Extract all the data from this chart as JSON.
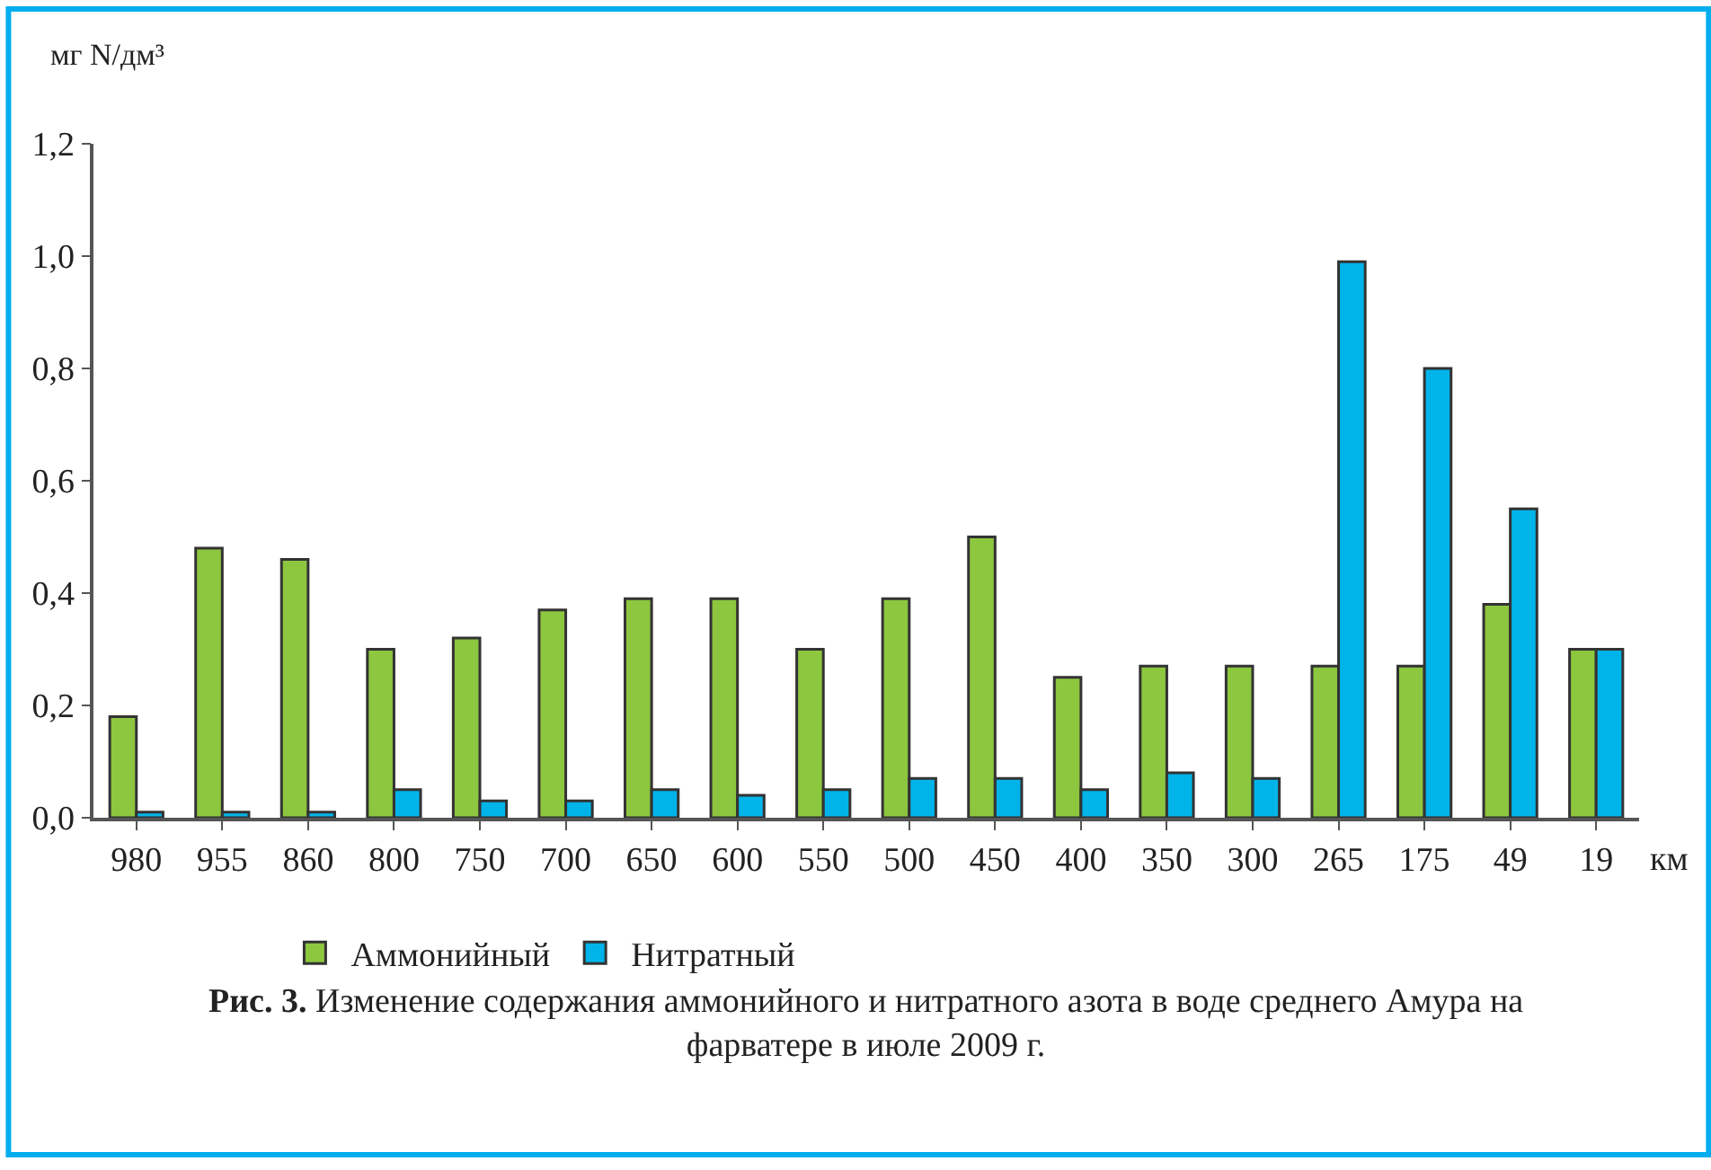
{
  "chart_data": {
    "type": "bar",
    "title": "Рис. 3. Изменение содержания аммонийного и нитратного азота в воде среднего Амура на фарватере в июле 2009 г.",
    "xlabel": "км",
    "ylabel": "мг N/дм³",
    "categories": [
      "980",
      "955",
      "860",
      "800",
      "750",
      "700",
      "650",
      "600",
      "550",
      "500",
      "450",
      "400",
      "350",
      "300",
      "265",
      "175",
      "49",
      "19"
    ],
    "series": [
      {
        "name": "Аммонийный",
        "color": "#8dc63f",
        "values": [
          0.18,
          0.48,
          0.46,
          0.3,
          0.32,
          0.37,
          0.39,
          0.39,
          0.3,
          0.39,
          0.5,
          0.25,
          0.27,
          0.27,
          0.27,
          0.27,
          0.38,
          0.3
        ]
      },
      {
        "name": "Нитратный",
        "color": "#00b4ea",
        "values": [
          0.01,
          0.01,
          0.01,
          0.05,
          0.03,
          0.03,
          0.05,
          0.04,
          0.05,
          0.07,
          0.07,
          0.05,
          0.08,
          0.07,
          0.99,
          0.8,
          0.55,
          0.3
        ]
      }
    ],
    "ylim": [
      0,
      1.2
    ],
    "yticks": [
      {
        "value": 0,
        "label": "0,0"
      },
      {
        "value": 0.2,
        "label": "0,2"
      },
      {
        "value": 0.4,
        "label": "0,4"
      },
      {
        "value": 0.6,
        "label": "0,6"
      },
      {
        "value": 0.8,
        "label": "0,8"
      },
      {
        "value": 1.0,
        "label": "1,0"
      },
      {
        "value": 1.2,
        "label": "1,2"
      }
    ],
    "legend": "bottom"
  }
}
